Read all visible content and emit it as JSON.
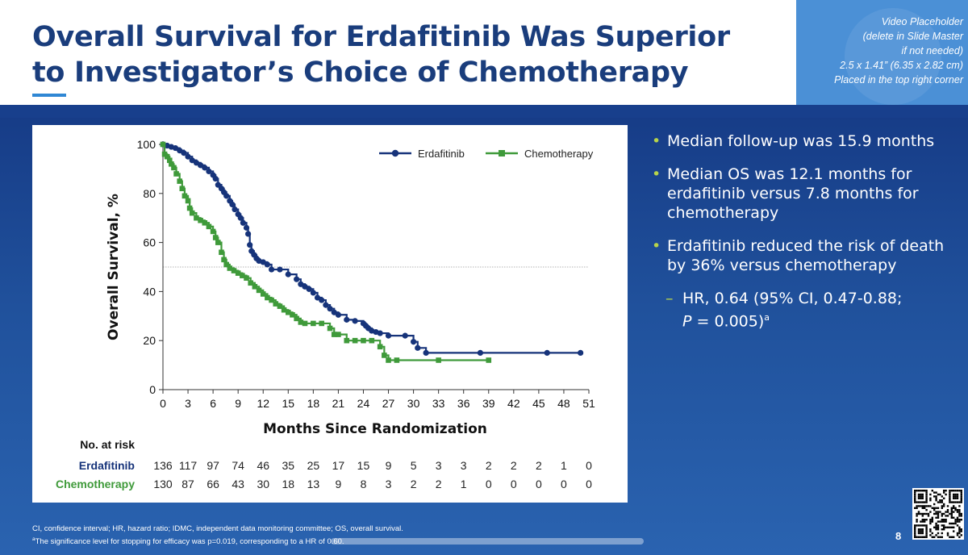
{
  "slide": {
    "title": "Overall Survival for Erdafitinib Was Superior to Investigator’s Choice of Chemotherapy",
    "video_placeholder_lines": [
      "Video Placeholder",
      "(delete in Slide Master",
      "if not needed)",
      "2.5 x 1.41” (6.35 x 2.82 cm)",
      "Placed in the top right corner"
    ],
    "page_number": "8",
    "footnotes": {
      "line1": "CI, confidence interval; HR, hazard ratio; IDMC, independent data monitoring committee; OS, overall survival.",
      "line2_sup": "a",
      "line2_text": "The significance level for stopping for efficacy was p=0.019, corresponding to a HR of 0.60."
    },
    "qr_code": "qr-code-icon"
  },
  "bullets": [
    {
      "text": "Median follow-up was 15.9 months"
    },
    {
      "text": "Median OS was 12.1 months for erdafitinib versus 7.8 months for chemotherapy"
    },
    {
      "text": "Erdafitinib reduced the risk of death by 36% versus chemotherapy"
    }
  ],
  "subbullet": {
    "line1": "HR, 0.64 (95% CI, 0.47-0.88;",
    "p_label": "P",
    "p_value": " = 0.005)",
    "sup": "a"
  },
  "colors": {
    "erdafitinib": "#16337a",
    "chemotherapy": "#3f9a3a",
    "bullet_marker": "#b7d44a"
  },
  "chart_data": {
    "type": "line",
    "subtype": "kaplan-meier",
    "ylabel": "Overall Survival, %",
    "xlabel": "Months Since Randomization",
    "xlim": [
      0,
      51
    ],
    "ylim": [
      0,
      100
    ],
    "xticks": [
      0,
      3,
      6,
      9,
      12,
      15,
      18,
      21,
      24,
      27,
      30,
      33,
      36,
      39,
      42,
      45,
      48,
      51
    ],
    "yticks": [
      0,
      20,
      40,
      60,
      80,
      100
    ],
    "reference_line_y": 50,
    "legend_position": "top-right",
    "series": [
      {
        "name": "Erdafitinib",
        "marker": "circle",
        "points": [
          [
            0,
            100
          ],
          [
            0.5,
            99.5
          ],
          [
            1,
            99
          ],
          [
            1.5,
            98.5
          ],
          [
            2,
            97.5
          ],
          [
            2.5,
            96.5
          ],
          [
            3,
            95
          ],
          [
            3.5,
            93.5
          ],
          [
            4,
            92.5
          ],
          [
            4.5,
            91.5
          ],
          [
            5,
            90.5
          ],
          [
            5.5,
            89
          ],
          [
            6,
            87.5
          ],
          [
            6.3,
            86
          ],
          [
            6.6,
            83.5
          ],
          [
            7,
            82
          ],
          [
            7.3,
            80.5
          ],
          [
            7.6,
            79
          ],
          [
            8,
            77
          ],
          [
            8.3,
            75.5
          ],
          [
            8.6,
            73.5
          ],
          [
            9,
            71.5
          ],
          [
            9.3,
            70
          ],
          [
            9.6,
            68
          ],
          [
            10,
            66
          ],
          [
            10.2,
            63.5
          ],
          [
            10.4,
            59
          ],
          [
            10.6,
            56.5
          ],
          [
            10.9,
            55
          ],
          [
            11.2,
            53.5
          ],
          [
            11.5,
            52.5
          ],
          [
            12,
            52
          ],
          [
            12.5,
            51
          ],
          [
            13,
            49
          ],
          [
            14,
            49
          ],
          [
            15,
            47
          ],
          [
            16,
            45
          ],
          [
            16.5,
            43
          ],
          [
            17,
            42
          ],
          [
            17.5,
            41
          ],
          [
            18,
            39.5
          ],
          [
            18.5,
            37.5
          ],
          [
            19,
            36.5
          ],
          [
            19.5,
            34.5
          ],
          [
            20,
            33
          ],
          [
            20.5,
            31.5
          ],
          [
            21,
            30.5
          ],
          [
            22,
            28.5
          ],
          [
            23,
            28
          ],
          [
            24,
            27
          ],
          [
            24.3,
            26
          ],
          [
            24.6,
            25
          ],
          [
            25,
            24
          ],
          [
            25.5,
            23.5
          ],
          [
            26,
            23
          ],
          [
            27,
            22
          ],
          [
            29,
            22
          ],
          [
            30,
            19.5
          ],
          [
            30.5,
            17
          ],
          [
            31.5,
            15
          ],
          [
            38,
            15
          ],
          [
            46,
            15
          ],
          [
            50,
            15
          ]
        ]
      },
      {
        "name": "Chemotherapy",
        "marker": "square",
        "points": [
          [
            0,
            100
          ],
          [
            0.2,
            96
          ],
          [
            0.5,
            95
          ],
          [
            0.8,
            93.5
          ],
          [
            1,
            92
          ],
          [
            1.3,
            90.5
          ],
          [
            1.6,
            88
          ],
          [
            2,
            85
          ],
          [
            2.3,
            82
          ],
          [
            2.6,
            79
          ],
          [
            3,
            77
          ],
          [
            3.2,
            74
          ],
          [
            3.5,
            72
          ],
          [
            4,
            70
          ],
          [
            4.5,
            69
          ],
          [
            5,
            68
          ],
          [
            5.5,
            66.5
          ],
          [
            6,
            64.5
          ],
          [
            6.3,
            62
          ],
          [
            6.6,
            60
          ],
          [
            7,
            56
          ],
          [
            7.3,
            53
          ],
          [
            7.6,
            51
          ],
          [
            8,
            49.5
          ],
          [
            8.5,
            48.5
          ],
          [
            9,
            47.5
          ],
          [
            9.5,
            46.5
          ],
          [
            10,
            45.5
          ],
          [
            10.5,
            43.5
          ],
          [
            11,
            42
          ],
          [
            11.5,
            40.5
          ],
          [
            12,
            39
          ],
          [
            12.5,
            37.5
          ],
          [
            13,
            36.5
          ],
          [
            13.5,
            35
          ],
          [
            14,
            34
          ],
          [
            14.5,
            32.5
          ],
          [
            15,
            31.5
          ],
          [
            15.5,
            30.5
          ],
          [
            16,
            29
          ],
          [
            16.5,
            27.5
          ],
          [
            17,
            27
          ],
          [
            18,
            27
          ],
          [
            19,
            27
          ],
          [
            20,
            25
          ],
          [
            20.5,
            22.5
          ],
          [
            21,
            22.5
          ],
          [
            22,
            20
          ],
          [
            23,
            20
          ],
          [
            24,
            20
          ],
          [
            25,
            20
          ],
          [
            26,
            17.5
          ],
          [
            26.5,
            14
          ],
          [
            27,
            12
          ],
          [
            28,
            12
          ],
          [
            33,
            12
          ],
          [
            39,
            12
          ]
        ]
      }
    ],
    "risk_table": {
      "header": "No. at risk",
      "rows": [
        {
          "name": "Erdafitinib",
          "values": [
            "136",
            "117",
            "97",
            "74",
            "46",
            "35",
            "25",
            "17",
            "15",
            "9",
            "5",
            "3",
            "3",
            "2",
            "2",
            "2",
            "1",
            "0"
          ]
        },
        {
          "name": "Chemotherapy",
          "values": [
            "130",
            "87",
            "66",
            "43",
            "30",
            "18",
            "13",
            "9",
            "8",
            "3",
            "2",
            "2",
            "1",
            "0",
            "0",
            "0",
            "0",
            "0"
          ]
        }
      ]
    }
  }
}
